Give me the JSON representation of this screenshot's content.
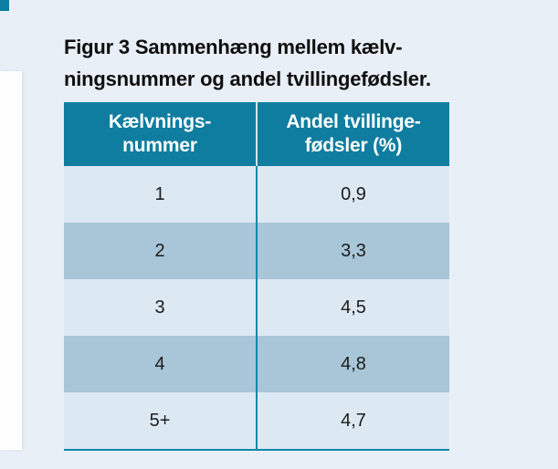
{
  "page": {
    "background_color": "#e9eff6"
  },
  "decor": {
    "corner_block_color": "#0d7ea1",
    "left_margin_strip_color": "#fefefe"
  },
  "figure": {
    "title_line1": "Figur 3 Sammenhæng mellem kælv-",
    "title_line2": "ningsnummer og andel tvillingefødsler.",
    "title_color": "#0e0e0e"
  },
  "table": {
    "header": {
      "col1_line1": "Kælvnings-",
      "col1_line2": "nummer",
      "col2_line1": "Andel tvillinge-",
      "col2_line2": "fødsler (%)",
      "background_color": "#0f7da0",
      "text_color": "#ffffff"
    },
    "rows": [
      {
        "calving_number": "1",
        "twin_rate_pct": "0,9"
      },
      {
        "calving_number": "2",
        "twin_rate_pct": "3,3"
      },
      {
        "calving_number": "3",
        "twin_rate_pct": "4,5"
      },
      {
        "calving_number": "4",
        "twin_rate_pct": "4,8"
      },
      {
        "calving_number": "5+",
        "twin_rate_pct": "4,7"
      }
    ],
    "row_color_light": "#dde9f2",
    "row_color_dark": "#a8c6d7",
    "divider_color": "#0e86aa"
  },
  "chart_data": {
    "type": "table",
    "title": "Figur 3 Sammenhæng mellem kælvningsnummer og andel tvillingefødsler.",
    "columns": [
      "Kælvningsnummer",
      "Andel tvillingefødsler (%)"
    ],
    "categories": [
      "1",
      "2",
      "3",
      "4",
      "5+"
    ],
    "values": [
      0.9,
      3.3,
      4.5,
      4.8,
      4.7
    ]
  }
}
